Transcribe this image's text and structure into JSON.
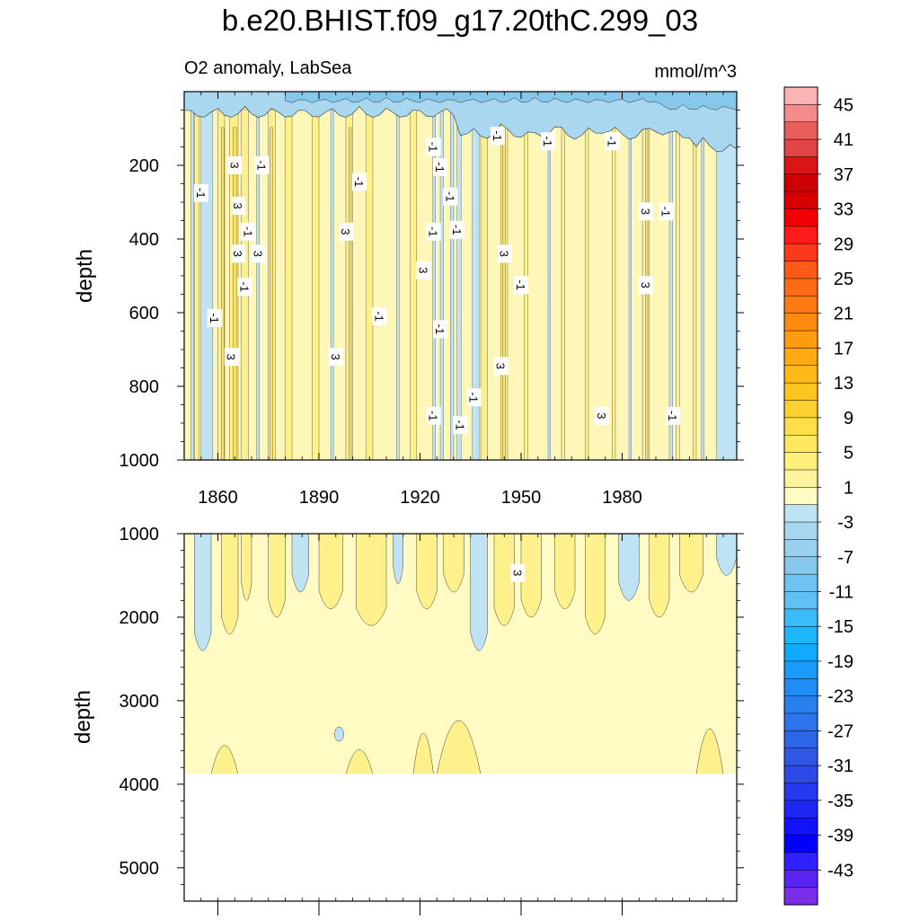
{
  "title": "b.e20.BHIST.f09_g17.20thC.299_03",
  "subtitle_left": "O2 anomaly, LabSea",
  "subtitle_right": "mmol/m^3",
  "chart_data": [
    {
      "type": "heatmap",
      "panel": "upper",
      "title": "b.e20.BHIST.f09_g17.20thC.299_03",
      "variable": "O2 anomaly, LabSea",
      "units": "mmol/m^3",
      "ylabel": "depth",
      "xlabel": "",
      "xlim": [
        1850,
        2014
      ],
      "ylim": [
        1000,
        0
      ],
      "x_ticks": [
        1860,
        1890,
        1920,
        1950,
        1980
      ],
      "y_ticks": [
        200,
        400,
        600,
        800,
        1000
      ],
      "contour_labels": [
        {
          "value": "3",
          "x": 1865,
          "y": 200
        },
        {
          "value": "-1",
          "x": 1855,
          "y": 275
        },
        {
          "value": "3",
          "x": 1866,
          "y": 310
        },
        {
          "value": "-1",
          "x": 1873,
          "y": 200
        },
        {
          "value": "-1",
          "x": 1869,
          "y": 380
        },
        {
          "value": "3",
          "x": 1866,
          "y": 440
        },
        {
          "value": "3",
          "x": 1872,
          "y": 440
        },
        {
          "value": "-1",
          "x": 1868,
          "y": 530
        },
        {
          "value": "-1",
          "x": 1859,
          "y": 615
        },
        {
          "value": "3",
          "x": 1864,
          "y": 720
        },
        {
          "value": "3",
          "x": 1898,
          "y": 380
        },
        {
          "value": "3",
          "x": 1895,
          "y": 720
        },
        {
          "value": "-1",
          "x": 1902,
          "y": 245
        },
        {
          "value": "-1",
          "x": 1908,
          "y": 610
        },
        {
          "value": "3",
          "x": 1921,
          "y": 485
        },
        {
          "value": "-1",
          "x": 1924,
          "y": 150
        },
        {
          "value": "-1",
          "x": 1924,
          "y": 380
        },
        {
          "value": "-1",
          "x": 1926,
          "y": 205
        },
        {
          "value": "-1",
          "x": 1929,
          "y": 285
        },
        {
          "value": "-1",
          "x": 1931,
          "y": 375
        },
        {
          "value": "-1",
          "x": 1926,
          "y": 645
        },
        {
          "value": "-1",
          "x": 1924,
          "y": 880
        },
        {
          "value": "-1",
          "x": 1932,
          "y": 905
        },
        {
          "value": "-1",
          "x": 1936,
          "y": 830
        },
        {
          "value": "-1",
          "x": 1943,
          "y": 120
        },
        {
          "value": "3",
          "x": 1945,
          "y": 440
        },
        {
          "value": "3",
          "x": 1944,
          "y": 745
        },
        {
          "value": "-1",
          "x": 1950,
          "y": 525
        },
        {
          "value": "-1",
          "x": 1958,
          "y": 135
        },
        {
          "value": "-1",
          "x": 1977,
          "y": 135
        },
        {
          "value": "3",
          "x": 1974,
          "y": 880
        },
        {
          "value": "3",
          "x": 1987,
          "y": 325
        },
        {
          "value": "3",
          "x": 1987,
          "y": 525
        },
        {
          "value": "-1",
          "x": 1993,
          "y": 325
        },
        {
          "value": "-1",
          "x": 1995,
          "y": 880
        }
      ],
      "pattern": "Thin alternating vertical bands of weak positive (1 to 5, yellow) and weak negative (-1 to -3, light blue) anomalies; negative anomalies concentrated in the top ~100 m."
    },
    {
      "type": "heatmap",
      "panel": "lower",
      "ylabel": "depth",
      "xlim": [
        1850,
        2014
      ],
      "ylim": [
        5400,
        1000
      ],
      "y_ticks": [
        1000,
        2000,
        3000,
        4000,
        5000
      ],
      "data_floor_depth": 3880,
      "contour_labels": [
        {
          "value": "3",
          "x": 1949,
          "y": 1470
        }
      ],
      "pattern": "Mostly weak positive anomaly (1 to 3) below 2500 m; alternating positive/negative bands near 1000-2400 m; no data below ~3880 m."
    }
  ],
  "colorbar": {
    "labels": [
      "45",
      "41",
      "37",
      "33",
      "29",
      "25",
      "21",
      "17",
      "13",
      "9",
      "5",
      "1",
      "-3",
      "-7",
      "-11",
      "-15",
      "-19",
      "-23",
      "-27",
      "-31",
      "-35",
      "-39",
      "-43"
    ],
    "colors": [
      "#fbb3b3",
      "#f48a8a",
      "#ea5d5d",
      "#e04444",
      "#d81616",
      "#cd0000",
      "#d80000",
      "#f00000",
      "#ff1a1a",
      "#ff3a1a",
      "#ff5a1a",
      "#ff6a14",
      "#ff7a10",
      "#ff8b10",
      "#ff9c10",
      "#ffaa12",
      "#ffba18",
      "#fcc520",
      "#fdd230",
      "#fedf4a",
      "#ffe860",
      "#fff07c",
      "#fff39c",
      "#fffbc2",
      "#bde3f4",
      "#a9d7ef",
      "#98d0ee",
      "#86c8ec",
      "#6fc3f0",
      "#5ec1f3",
      "#3bbcf8",
      "#1eb6fb",
      "#10aaff",
      "#1a9cff",
      "#208cf8",
      "#2680f0",
      "#2c74ec",
      "#2e66e8",
      "#3058e5",
      "#2d4ae8",
      "#2838ee",
      "#2026f3",
      "#1212fa",
      "#0000ff",
      "#3020ff",
      "#5a24f4",
      "#7b2ee8"
    ]
  }
}
